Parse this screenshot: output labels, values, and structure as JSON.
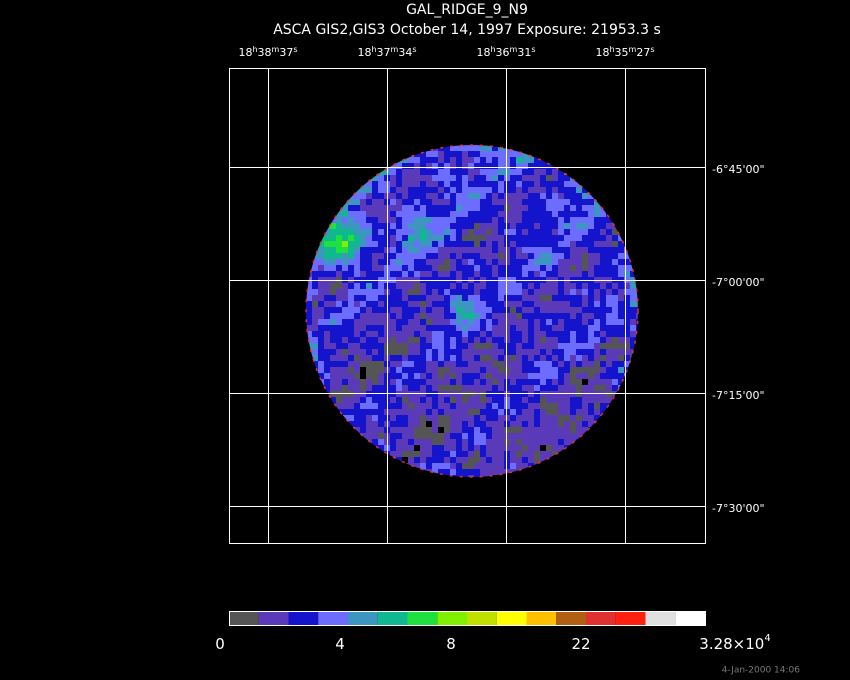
{
  "header": {
    "title": "GAL_RIDGE_9_N9",
    "subtitle": "ASCA GIS2,GIS3 October 14, 1997 Exposure: 21953.3 s"
  },
  "ra_labels": [
    [
      "18",
      "h",
      "38",
      "m",
      "37",
      "s"
    ],
    [
      "18",
      "h",
      "37",
      "m",
      "34",
      "s"
    ],
    [
      "18",
      "h",
      "36",
      "m",
      "31",
      "s"
    ],
    [
      "18",
      "h",
      "35",
      "m",
      "27",
      "s"
    ]
  ],
  "dec_labels": [
    "-6°45'00\"",
    "-7°00'00\"",
    "-7°15'00\"",
    "-7°30'00\""
  ],
  "colorbar": {
    "colors": [
      "#555555",
      "#5a3ab8",
      "#1414cc",
      "#6c6cff",
      "#3c96c0",
      "#10b890",
      "#20e040",
      "#80f000",
      "#c0e000",
      "#ffff00",
      "#ffc000",
      "#b06010",
      "#e03030",
      "#ff2010",
      "#e0e0e0",
      "#ffffff"
    ],
    "labels": [
      [
        "0"
      ],
      [
        "4"
      ],
      [
        "8"
      ],
      [
        "22"
      ],
      [
        "3.28×10",
        "4"
      ]
    ]
  },
  "timestamp": "4-Jan-2000 14:06"
}
